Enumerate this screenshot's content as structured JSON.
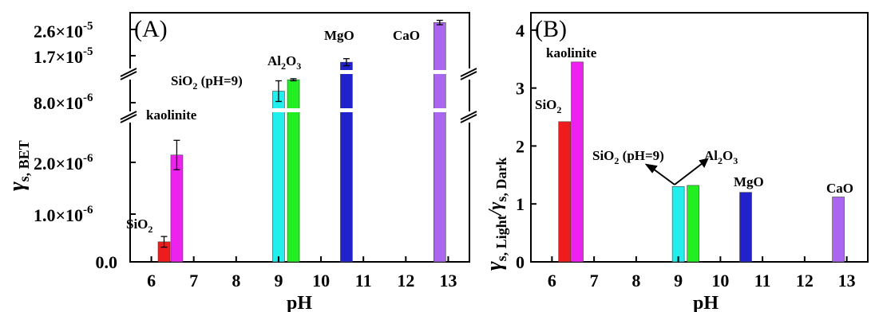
{
  "chart_data": [
    {
      "type": "bar",
      "panel": "(A)",
      "xlabel": "pH",
      "ylabel_main": "γ",
      "ylabel_sub": "s, BET",
      "xlim": [
        5.5,
        13.5
      ],
      "xticks": [
        "6",
        "7",
        "8",
        "9",
        "10",
        "11",
        "12",
        "13"
      ],
      "y_axis_broken": true,
      "y_segments": [
        {
          "range": [
            0,
            3.2e-06
          ],
          "ticks": [
            "0.0",
            "1.0×10-6",
            "2.0×10-6"
          ]
        },
        {
          "range": [
            6.5e-06,
            1.05e-05
          ],
          "ticks": [
            "8.0×10-6"
          ]
        },
        {
          "range": [
            1.45e-05,
            2.75e-05
          ],
          "ticks": [
            "1.7×10-5",
            "2.6×10-5"
          ]
        }
      ],
      "bars": [
        {
          "label": "SiO2",
          "x": 6.3,
          "value": 4.5e-07,
          "error": 1.2e-07,
          "color": "#ee1c1c"
        },
        {
          "label": "kaolinite",
          "x": 6.6,
          "value": 2.4e-06,
          "error": 3.3e-07,
          "color": "#ee22ee"
        },
        {
          "label": "SiO2 (pH=9)",
          "x": 9.0,
          "value": 9e-06,
          "error": 1e-06,
          "color": "#22eeee"
        },
        {
          "label": "Al2O3",
          "x": 9.35,
          "value": 1.01e-05,
          "error": 1e-07,
          "color": "#22ee22"
        },
        {
          "label": "MgO",
          "x": 10.6,
          "value": 1.7e-05,
          "error": 8e-07,
          "color": "#2222cc"
        },
        {
          "label": "CaO",
          "x": 12.8,
          "value": 2.6e-05,
          "error": 5e-07,
          "color": "#aa66ee"
        }
      ]
    },
    {
      "type": "bar",
      "panel": "(B)",
      "xlabel": "pH",
      "ylabel_main": "γ",
      "ylabel_sub": "s, Light/γs, Dark",
      "xlim": [
        5.5,
        13.5
      ],
      "xticks": [
        "6",
        "7",
        "8",
        "9",
        "10",
        "11",
        "12",
        "13"
      ],
      "ylim": [
        0,
        4.3
      ],
      "yticks": [
        "0",
        "1",
        "2",
        "3",
        "4"
      ],
      "annotation": "SiO2 (pH=9) and Al2O3 arrows",
      "bars": [
        {
          "label": "SiO2",
          "x": 6.3,
          "value": 2.42,
          "color": "#ee1c1c"
        },
        {
          "label": "kaolinite",
          "x": 6.6,
          "value": 3.45,
          "color": "#ee22ee"
        },
        {
          "label": "SiO2 (pH=9)",
          "x": 9.0,
          "value": 1.3,
          "color": "#22eeee"
        },
        {
          "label": "Al2O3",
          "x": 9.35,
          "value": 1.32,
          "color": "#22ee22"
        },
        {
          "label": "MgO",
          "x": 10.6,
          "value": 1.2,
          "color": "#2222cc"
        },
        {
          "label": "CaO",
          "x": 12.8,
          "value": 1.12,
          "color": "#aa66ee"
        }
      ]
    }
  ],
  "labels": {
    "a_sio2": "SiO",
    "a_kaol": "kaolinite",
    "a_sio2ph": "SiO",
    "a_sio2ph_rest": " (pH=9)",
    "a_al": "Al",
    "a_al_o": "O",
    "a_mgo": "MgO",
    "a_cao": "CaO",
    "b_sio2": "SiO",
    "b_kaol": "kaolinite",
    "b_sio2ph": "SiO",
    "b_sio2ph_rest": " (pH=9)",
    "b_al": "Al",
    "b_al_o": "O",
    "b_mgo": "MgO",
    "b_cao": "CaO",
    "sub2": "2",
    "sub3": "3",
    "sci_a_1": "1.0×10",
    "sci_a_2": "2.0×10",
    "sci_a_8": "8.0×10",
    "sci_a_17": "1.7×10",
    "sci_a_26": "2.6×10",
    "exp6": "-6",
    "exp5": "-5",
    "zero": "0.0",
    "bsub_light": "s, Light",
    "bsub_slash": "/",
    "bsub_dark": "s, Dark"
  }
}
